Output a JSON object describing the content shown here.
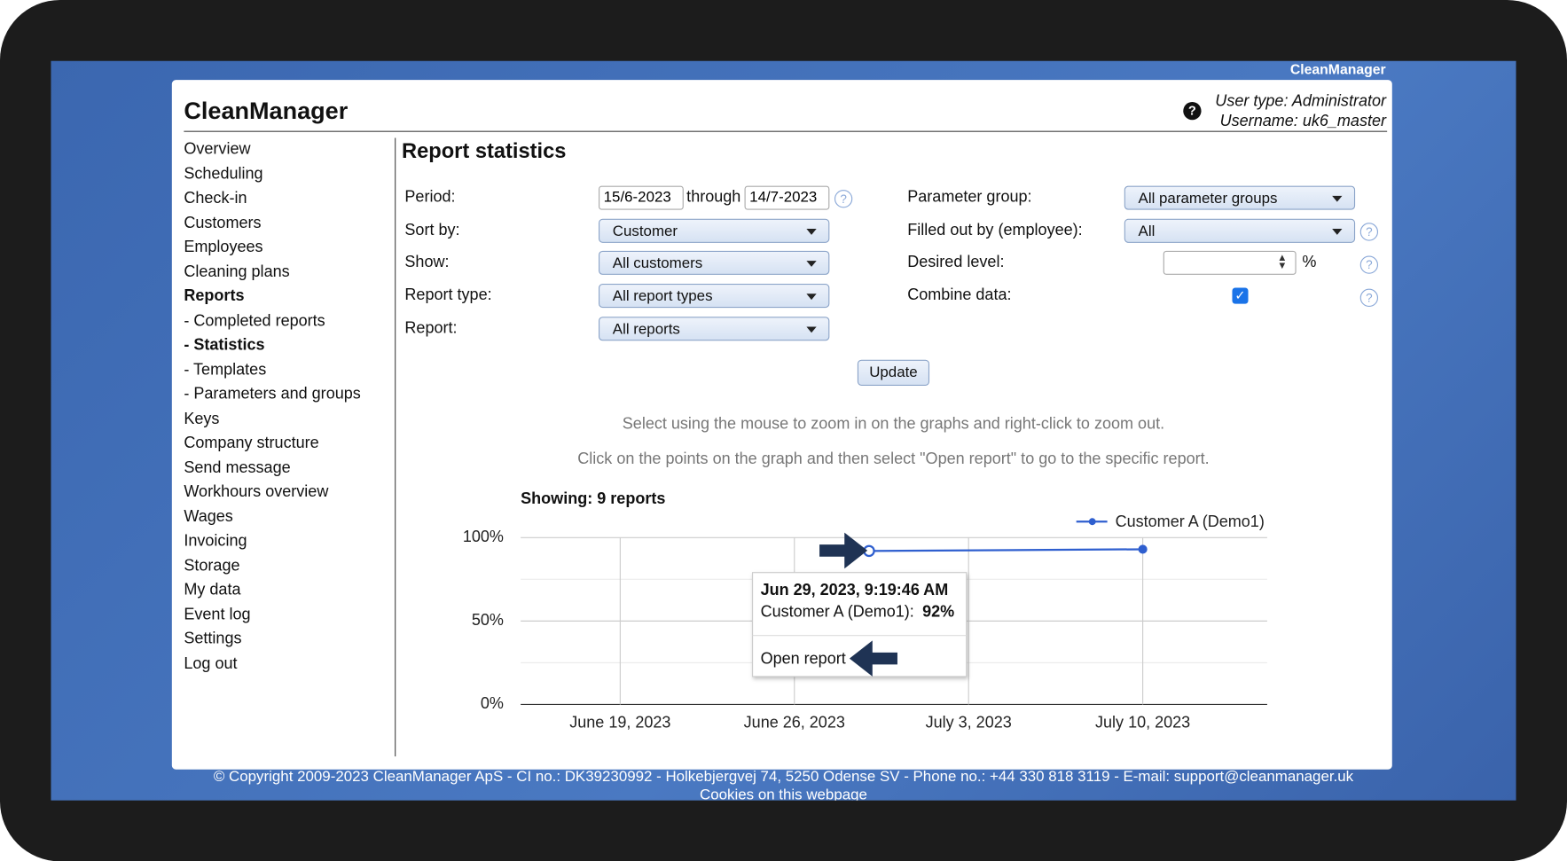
{
  "header": {
    "topbar": "CleanManager",
    "brand": "CleanManager",
    "user_type": "User type: Administrator",
    "username": "Username: uk6_master"
  },
  "nav": [
    {
      "label": "Overview"
    },
    {
      "label": "Scheduling"
    },
    {
      "label": "Check-in"
    },
    {
      "label": "Customers"
    },
    {
      "label": "Employees"
    },
    {
      "label": "Cleaning plans"
    },
    {
      "label": "Reports",
      "bold": true
    },
    {
      "label": "- Completed reports"
    },
    {
      "label": "- Statistics",
      "bold": true
    },
    {
      "label": "- Templates"
    },
    {
      "label": "- Parameters and groups"
    },
    {
      "label": "Keys"
    },
    {
      "label": "Company structure"
    },
    {
      "label": "Send message"
    },
    {
      "label": "Workhours overview"
    },
    {
      "label": "Wages"
    },
    {
      "label": "Invoicing"
    },
    {
      "label": "Storage"
    },
    {
      "label": "My data"
    },
    {
      "label": "Event log"
    },
    {
      "label": "Settings"
    },
    {
      "label": "Log out"
    }
  ],
  "page": {
    "title": "Report statistics",
    "form": {
      "period_label": "Period:",
      "period_from": "15/6-2023",
      "through": "through",
      "period_to": "14/7-2023",
      "sort_label": "Sort by:",
      "sort_value": "Customer",
      "show_label": "Show:",
      "show_value": "All customers",
      "type_label": "Report type:",
      "type_value": "All report types",
      "report_label": "Report:",
      "report_value": "All reports",
      "param_label": "Parameter group:",
      "param_value": "All parameter groups",
      "filled_label": "Filled out by (employee):",
      "filled_value": "All",
      "desired_label": "Desired level:",
      "desired_unit": "%",
      "combine_label": "Combine data:",
      "combine_checked": true,
      "update": "Update"
    },
    "note1": "Select using the mouse to zoom in on the graphs and right-click to zoom out.",
    "note2": "Click on the points on the graph and then select \"Open report\" to go to the specific report.",
    "showing": "Showing: 9 reports"
  },
  "chart_data": {
    "type": "line",
    "xlim": [
      "2023-06-15",
      "2023-07-15"
    ],
    "xticks": [
      {
        "value": "2023-06-19",
        "label": "June 19, 2023"
      },
      {
        "value": "2023-06-26",
        "label": "June 26, 2023"
      },
      {
        "value": "2023-07-03",
        "label": "July 3, 2023"
      },
      {
        "value": "2023-07-10",
        "label": "July 10, 2023"
      }
    ],
    "ylim": [
      0,
      100
    ],
    "yticks": [
      {
        "value": 0,
        "label": "0%"
      },
      {
        "value": 50,
        "label": "50%"
      },
      {
        "value": 100,
        "label": "100%"
      }
    ],
    "minor_yticks": [
      25,
      75
    ],
    "grid": true,
    "series": [
      {
        "name": "Customer A (Demo1)",
        "color": "#2f5fcf",
        "x": [
          "2023-06-29",
          "2023-07-10"
        ],
        "values": [
          92,
          93
        ]
      }
    ],
    "tooltip": {
      "title": "Jun 29, 2023, 9:19:46 AM",
      "series_label": "Customer A (Demo1):",
      "value_label": "92%",
      "action": "Open report"
    }
  },
  "footer": {
    "copyright": "© Copyright 2009-2023 CleanManager ApS - CI no.: DK39230992 - Holkebjergvej 74, 5250 Odense SV - Phone no.: +44 330 818 3119 - E-mail: support@cleanmanager.uk",
    "cookies": "Cookies on this webpage"
  }
}
